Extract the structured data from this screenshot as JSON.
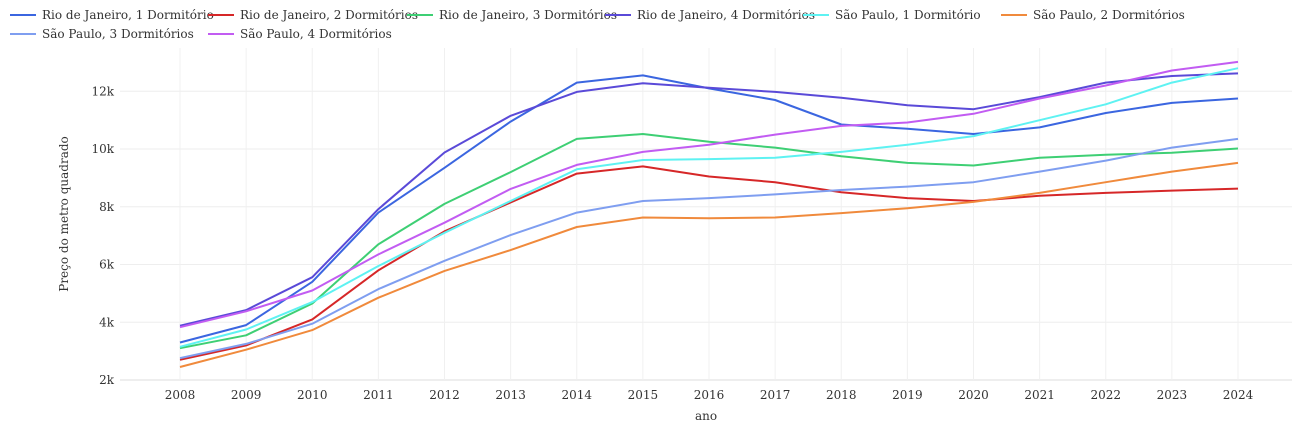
{
  "chart_data": {
    "type": "line",
    "title": "",
    "xlabel": "ano",
    "ylabel": "Preço do metro quadrado",
    "x": [
      2008,
      2009,
      2010,
      2011,
      2012,
      2013,
      2014,
      2015,
      2016,
      2017,
      2018,
      2019,
      2020,
      2021,
      2022,
      2023,
      2024
    ],
    "x_tick_labels": [
      "2008",
      "2009",
      "2010",
      "2011",
      "2012",
      "2013",
      "2014",
      "2015",
      "2016",
      "2017",
      "2018",
      "2019",
      "2020",
      "2021",
      "2022",
      "2023",
      "2024"
    ],
    "ylim": [
      2000,
      13500
    ],
    "y_ticks": [
      2000,
      4000,
      6000,
      8000,
      10000,
      12000
    ],
    "y_tick_labels": [
      "2k",
      "4k",
      "6k",
      "8k",
      "10k",
      "12k"
    ],
    "grid": true,
    "legend_position": "top-left",
    "series": [
      {
        "name": "Rio de Janeiro, 1 Dormitório",
        "color": "#3b66e0",
        "values": [
          3300,
          3900,
          5400,
          7800,
          9350,
          10950,
          12300,
          12550,
          12100,
          11700,
          10850,
          10700,
          10520,
          10750,
          11250,
          11600,
          11750
        ]
      },
      {
        "name": "Rio de Janeiro, 2 Dormitórios",
        "color": "#d62728",
        "values": [
          2700,
          3200,
          4100,
          5800,
          7150,
          8150,
          9150,
          9400,
          9050,
          8850,
          8500,
          8300,
          8200,
          8380,
          8480,
          8560,
          8630
        ]
      },
      {
        "name": "Rio de Janeiro, 3 Dormitórios",
        "color": "#3ecf74",
        "values": [
          3100,
          3550,
          4650,
          6700,
          8100,
          9200,
          10350,
          10520,
          10250,
          10050,
          9750,
          9520,
          9430,
          9700,
          9800,
          9870,
          10020
        ]
      },
      {
        "name": "Rio de Janeiro, 4 Dormitórios",
        "color": "#5a4ad8",
        "values": [
          3880,
          4420,
          5560,
          7920,
          9880,
          11150,
          11980,
          12280,
          12120,
          11980,
          11780,
          11520,
          11380,
          11800,
          12300,
          12530,
          12620
        ]
      },
      {
        "name": "São Paulo, 1 Dormitório",
        "color": "#5ef2f2",
        "values": [
          3150,
          3750,
          4700,
          5950,
          7100,
          8200,
          9300,
          9620,
          9650,
          9700,
          9900,
          10150,
          10450,
          11000,
          11550,
          12300,
          12800
        ]
      },
      {
        "name": "São Paulo, 2 Dormitórios",
        "color": "#f08a3c",
        "values": [
          2450,
          3050,
          3730,
          4850,
          5780,
          6500,
          7300,
          7630,
          7600,
          7630,
          7780,
          7950,
          8170,
          8480,
          8850,
          9220,
          9520
        ]
      },
      {
        "name": "São Paulo, 3 Dormitórios",
        "color": "#7f9ef0",
        "values": [
          2760,
          3250,
          3950,
          5150,
          6130,
          7020,
          7800,
          8200,
          8300,
          8430,
          8580,
          8700,
          8850,
          9220,
          9600,
          10050,
          10350
        ]
      },
      {
        "name": "São Paulo, 4 Dormitórios",
        "color": "#c25cf2",
        "values": [
          3830,
          4380,
          5100,
          6350,
          7450,
          8620,
          9450,
          9900,
          10150,
          10500,
          10800,
          10920,
          11220,
          11750,
          12200,
          12720,
          13020
        ]
      }
    ]
  }
}
